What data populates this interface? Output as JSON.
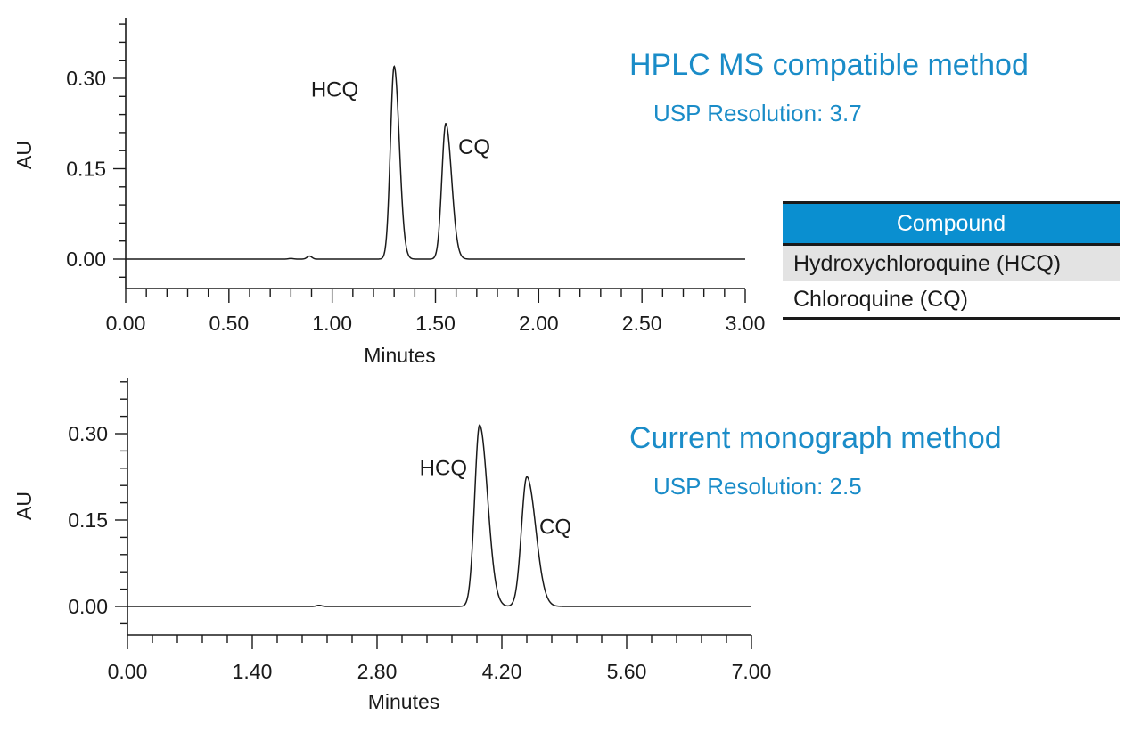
{
  "colors": {
    "accent": "#1a8cc8",
    "table_header": "#0a8fd0",
    "row_shade": "#e3e3e3",
    "trace": "#1a1a1a"
  },
  "panels": [
    {
      "method": "HPLC MS compatible method",
      "resolution": "USP Resolution: 3.7"
    },
    {
      "method": "Current monograph method",
      "resolution": "USP Resolution: 2.5"
    }
  ],
  "table": {
    "header": "Compound",
    "rows": [
      "Hydroxychloroquine (HCQ)",
      "Chloroquine (CQ)"
    ]
  },
  "chart_data": [
    {
      "type": "line",
      "title": "HPLC MS compatible method",
      "xlabel": "Minutes",
      "ylabel": "AU",
      "xlim": [
        0,
        3.0
      ],
      "ylim": [
        -0.05,
        0.4
      ],
      "x_ticks": [
        "0.00",
        "0.50",
        "1.00",
        "1.50",
        "2.00",
        "2.50",
        "3.00"
      ],
      "y_ticks": [
        "0.00",
        "0.15",
        "0.30"
      ],
      "grid": false,
      "baseline_end": 3.0,
      "peaks": [
        {
          "label": "HCQ",
          "rt": 1.3,
          "height": 0.32,
          "sigma": 0.018,
          "tail": 0.025
        },
        {
          "label": "CQ",
          "rt": 1.55,
          "height": 0.225,
          "sigma": 0.019,
          "tail": 0.028
        }
      ],
      "minor_bumps": [
        {
          "rt": 0.8,
          "height": 0.001
        },
        {
          "rt": 0.89,
          "height": 0.005
        }
      ]
    },
    {
      "type": "line",
      "title": "Current monograph method",
      "xlabel": "Minutes",
      "ylabel": "AU",
      "xlim": [
        0,
        7.0
      ],
      "ylim": [
        -0.05,
        0.4
      ],
      "x_ticks": [
        "0.00",
        "1.40",
        "2.80",
        "4.20",
        "5.60",
        "7.00"
      ],
      "y_ticks": [
        "0.00",
        "0.15",
        "0.30"
      ],
      "grid": false,
      "baseline_end": 7.0,
      "peaks": [
        {
          "label": "HCQ",
          "rt": 3.95,
          "height": 0.315,
          "sigma": 0.055,
          "tail": 0.09
        },
        {
          "label": "CQ",
          "rt": 4.48,
          "height": 0.225,
          "sigma": 0.06,
          "tail": 0.1
        }
      ],
      "minor_bumps": [
        {
          "rt": 2.15,
          "height": 0.002
        }
      ]
    }
  ]
}
